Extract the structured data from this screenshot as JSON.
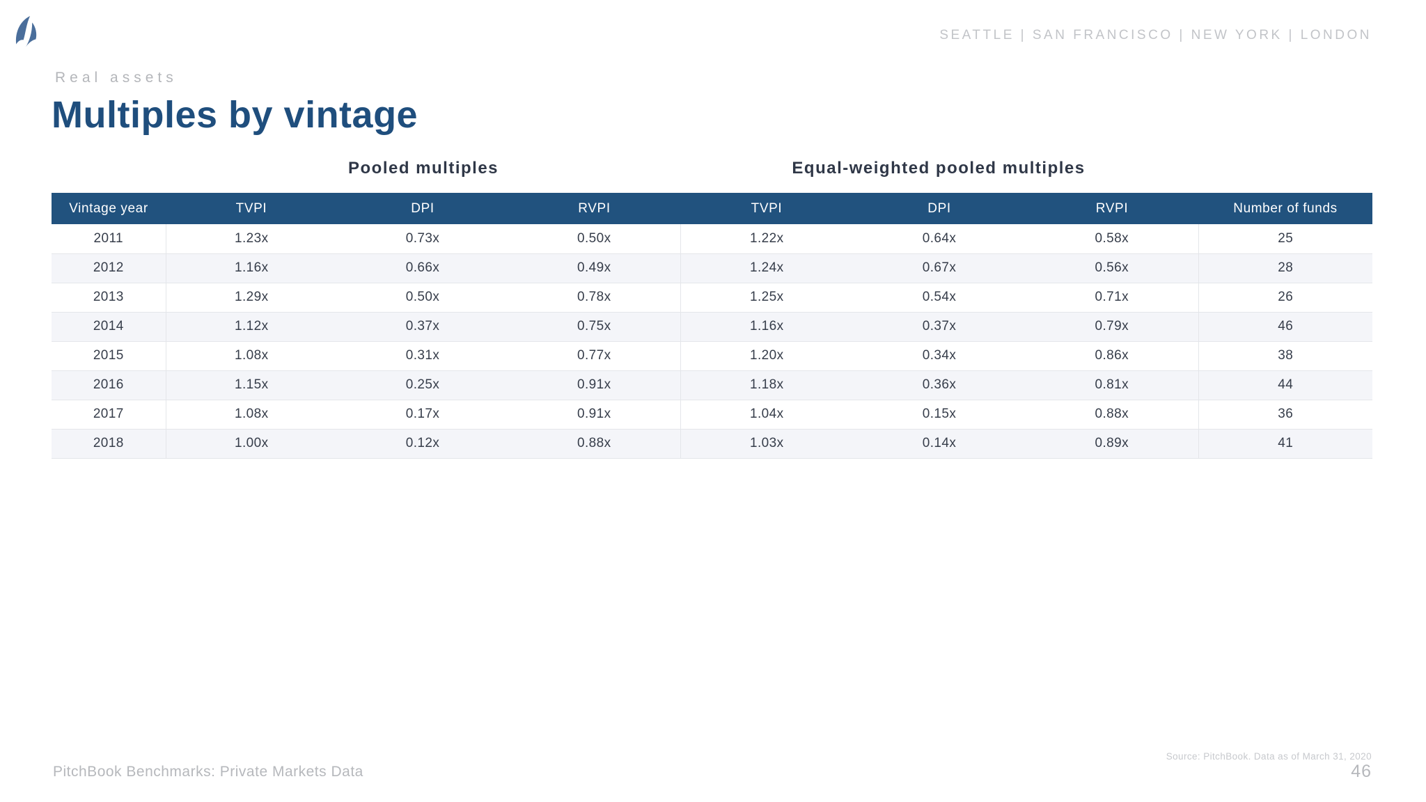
{
  "brand": {
    "logo_icon": "pitchbook-sail-logo",
    "offices": "SEATTLE  |  SAN FRANCISCO  |  NEW YORK  |  LONDON"
  },
  "header": {
    "eyebrow": "Real assets",
    "title": "Multiples by vintage"
  },
  "groups": {
    "pooled_label": "Pooled multiples",
    "equal_weighted_label": "Equal-weighted pooled multiples"
  },
  "table": {
    "columns": [
      "Vintage year",
      "TVPI",
      "DPI",
      "RVPI",
      "TVPI",
      "DPI",
      "RVPI",
      "Number of funds"
    ],
    "rows": [
      [
        "2011",
        "1.23x",
        "0.73x",
        "0.50x",
        "1.22x",
        "0.64x",
        "0.58x",
        "25"
      ],
      [
        "2012",
        "1.16x",
        "0.66x",
        "0.49x",
        "1.24x",
        "0.67x",
        "0.56x",
        "28"
      ],
      [
        "2013",
        "1.29x",
        "0.50x",
        "0.78x",
        "1.25x",
        "0.54x",
        "0.71x",
        "26"
      ],
      [
        "2014",
        "1.12x",
        "0.37x",
        "0.75x",
        "1.16x",
        "0.37x",
        "0.79x",
        "46"
      ],
      [
        "2015",
        "1.08x",
        "0.31x",
        "0.77x",
        "1.20x",
        "0.34x",
        "0.86x",
        "38"
      ],
      [
        "2016",
        "1.15x",
        "0.25x",
        "0.91x",
        "1.18x",
        "0.36x",
        "0.81x",
        "44"
      ],
      [
        "2017",
        "1.08x",
        "0.17x",
        "0.91x",
        "1.04x",
        "0.15x",
        "0.88x",
        "36"
      ],
      [
        "2018",
        "1.00x",
        "0.12x",
        "0.88x",
        "1.03x",
        "0.14x",
        "0.89x",
        "41"
      ]
    ]
  },
  "footer": {
    "left_text": "PitchBook Benchmarks: Private Markets Data",
    "source": "Source: PitchBook. Data as of March 31, 2020",
    "page_number": "46"
  },
  "colors": {
    "table_header_band": "#21527e",
    "title_blue": "#1f4e7d",
    "logo_blue": "#4a6e9b",
    "row_stripe": "#f4f5f9",
    "muted_gray": "#b6b8bc"
  }
}
